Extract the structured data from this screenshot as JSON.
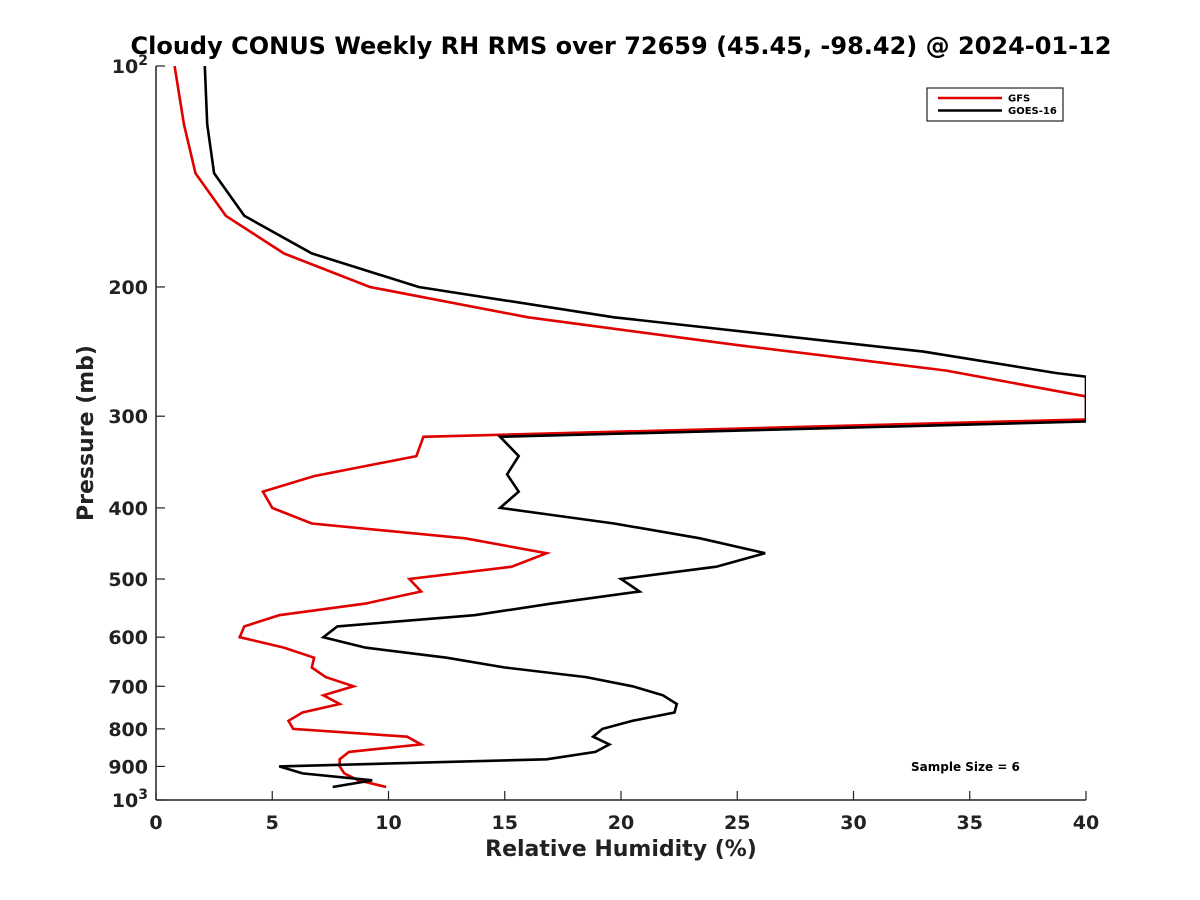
{
  "chart_data": {
    "type": "line",
    "title": "Cloudy CONUS Weekly RH RMS over 72659 (45.45, -98.42) @ 2024-01-12",
    "xlabel": "Relative Humidity (%)",
    "ylabel": "Pressure (mb)",
    "xlim": [
      0,
      40
    ],
    "ylim": [
      1000,
      100
    ],
    "yscale": "log",
    "y_reversed": true,
    "grid": false,
    "legend_position": "top-right",
    "x_ticks": [
      "0",
      "5",
      "10",
      "15",
      "20",
      "25",
      "30",
      "35",
      "40"
    ],
    "y_ticks": [
      {
        "value": 100,
        "base": "10",
        "exp": "2"
      },
      {
        "value": 200,
        "label": "200"
      },
      {
        "value": 300,
        "label": "300"
      },
      {
        "value": 400,
        "label": "400"
      },
      {
        "value": 500,
        "label": "500"
      },
      {
        "value": 600,
        "label": "600"
      },
      {
        "value": 700,
        "label": "700"
      },
      {
        "value": 800,
        "label": "800"
      },
      {
        "value": 900,
        "label": "900"
      },
      {
        "value": 1000,
        "base": "10",
        "exp": "3"
      }
    ],
    "series": [
      {
        "name": "GFS",
        "color": "#e00000",
        "points": [
          [
            0.8,
            100
          ],
          [
            1.2,
            120
          ],
          [
            1.7,
            140
          ],
          [
            3.0,
            160
          ],
          [
            5.5,
            180
          ],
          [
            9.2,
            200
          ],
          [
            16.0,
            220
          ],
          [
            25.0,
            240
          ],
          [
            34.0,
            260
          ],
          [
            40.0,
            282
          ],
          [
            40.0,
            303
          ],
          [
            11.5,
            320
          ],
          [
            11.2,
            340
          ],
          [
            6.8,
            362
          ],
          [
            4.6,
            380
          ],
          [
            5.0,
            400
          ],
          [
            6.7,
            420
          ],
          [
            13.3,
            440
          ],
          [
            16.8,
            461
          ],
          [
            15.3,
            481
          ],
          [
            10.9,
            500
          ],
          [
            11.4,
            520
          ],
          [
            9.0,
            540
          ],
          [
            5.3,
            560
          ],
          [
            3.8,
            580
          ],
          [
            3.6,
            600
          ],
          [
            5.5,
            620
          ],
          [
            6.8,
            640
          ],
          [
            6.7,
            660
          ],
          [
            7.3,
            680
          ],
          [
            8.5,
            700
          ],
          [
            7.2,
            720
          ],
          [
            7.9,
            740
          ],
          [
            6.3,
            760
          ],
          [
            5.7,
            780
          ],
          [
            5.9,
            800
          ],
          [
            10.8,
            820
          ],
          [
            11.4,
            840
          ],
          [
            8.3,
            860
          ],
          [
            7.9,
            880
          ],
          [
            7.9,
            900
          ],
          [
            8.1,
            920
          ],
          [
            8.7,
            940
          ],
          [
            9.9,
            960
          ]
        ]
      },
      {
        "name": "GOES-16",
        "color": "#000000",
        "points": [
          [
            2.1,
            100
          ],
          [
            2.2,
            120
          ],
          [
            2.5,
            140
          ],
          [
            3.8,
            160
          ],
          [
            6.7,
            180
          ],
          [
            11.3,
            200
          ],
          [
            19.7,
            220
          ],
          [
            33.0,
            245
          ],
          [
            38.7,
            262
          ],
          [
            40.0,
            265
          ],
          [
            40.0,
            305
          ],
          [
            14.8,
            320
          ],
          [
            15.6,
            340
          ],
          [
            15.1,
            360
          ],
          [
            15.6,
            380
          ],
          [
            14.8,
            400
          ],
          [
            19.7,
            420
          ],
          [
            23.4,
            440
          ],
          [
            26.2,
            461
          ],
          [
            24.1,
            481
          ],
          [
            20.0,
            500
          ],
          [
            20.8,
            520
          ],
          [
            17.0,
            540
          ],
          [
            13.7,
            560
          ],
          [
            7.8,
            580
          ],
          [
            7.2,
            600
          ],
          [
            9.0,
            620
          ],
          [
            12.5,
            640
          ],
          [
            15.0,
            660
          ],
          [
            18.5,
            680
          ],
          [
            20.5,
            700
          ],
          [
            21.8,
            720
          ],
          [
            22.4,
            740
          ],
          [
            22.3,
            760
          ],
          [
            20.5,
            780
          ],
          [
            19.2,
            800
          ],
          [
            18.8,
            820
          ],
          [
            19.5,
            840
          ],
          [
            18.9,
            860
          ],
          [
            16.8,
            880
          ],
          [
            5.3,
            900
          ],
          [
            6.3,
            920
          ],
          [
            9.3,
            940
          ],
          [
            7.6,
            960
          ]
        ]
      }
    ],
    "annotations": [
      "Sample Size = 6"
    ]
  }
}
